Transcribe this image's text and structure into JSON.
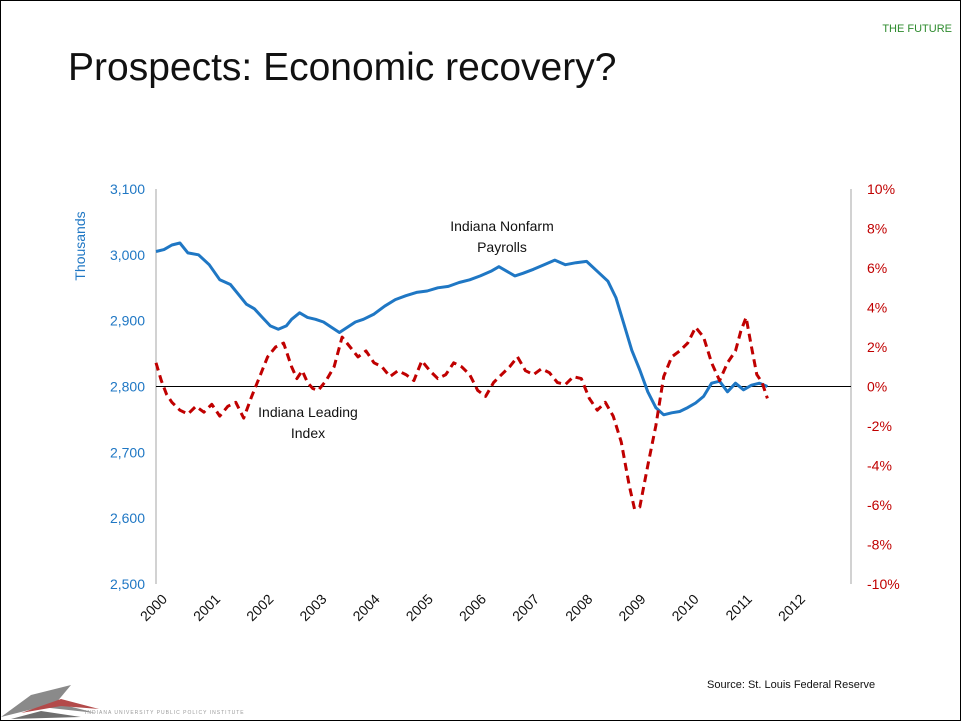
{
  "section_tag": "THE FUTURE",
  "title": "Prospects: Economic recovery?",
  "source": "Source:  St. Louis Federal Reserve",
  "logo_text": "INDIANA UNIVERSITY PUBLIC POLICY INSTITUTE",
  "colors": {
    "payrolls": "#1f77c4",
    "leading": "#c00000",
    "axis": "#808080"
  },
  "chart_data": {
    "type": "line",
    "xlabel": "",
    "left_axis": {
      "label": "Thousands",
      "ylim": [
        2500,
        3100
      ],
      "ticks": [
        "2,500",
        "2,600",
        "2,700",
        "2,800",
        "2,900",
        "3,000",
        "3,100"
      ]
    },
    "right_axis": {
      "ylim": [
        -10,
        10
      ],
      "ticks": [
        "-10%",
        "-8%",
        "-6%",
        "-4%",
        "-2%",
        "0%",
        "2%",
        "4%",
        "6%",
        "8%",
        "10%"
      ]
    },
    "x_ticks": [
      "2000",
      "2001",
      "2002",
      "2003",
      "2004",
      "2005",
      "2006",
      "2007",
      "2008",
      "2009",
      "2010",
      "2011",
      "2012"
    ],
    "xlim": [
      2000,
      2012
    ],
    "series": [
      {
        "name": "Indiana Nonfarm Payrolls",
        "axis": "left",
        "style": "solid",
        "x": [
          2000.0,
          2000.15,
          2000.3,
          2000.45,
          2000.6,
          2000.8,
          2001.0,
          2001.2,
          2001.4,
          2001.55,
          2001.7,
          2001.85,
          2002.0,
          2002.15,
          2002.3,
          2002.45,
          2002.55,
          2002.7,
          2002.85,
          2003.0,
          2003.15,
          2003.3,
          2003.45,
          2003.6,
          2003.75,
          2003.9,
          2004.1,
          2004.3,
          2004.5,
          2004.7,
          2004.9,
          2005.1,
          2005.3,
          2005.5,
          2005.7,
          2005.9,
          2006.1,
          2006.3,
          2006.45,
          2006.6,
          2006.75,
          2006.9,
          2007.1,
          2007.3,
          2007.5,
          2007.7,
          2007.9,
          2008.1,
          2008.3,
          2008.5,
          2008.65,
          2008.8,
          2008.95,
          2009.1,
          2009.25,
          2009.4,
          2009.55,
          2009.7,
          2009.85,
          2010.0,
          2010.15,
          2010.3,
          2010.45,
          2010.6,
          2010.75,
          2010.9,
          2011.05,
          2011.2,
          2011.35,
          2011.5
        ],
        "values": [
          3005,
          3008,
          3015,
          3018,
          3003,
          3000,
          2985,
          2962,
          2955,
          2940,
          2925,
          2918,
          2905,
          2892,
          2887,
          2892,
          2902,
          2912,
          2905,
          2902,
          2898,
          2890,
          2882,
          2890,
          2898,
          2902,
          2910,
          2922,
          2932,
          2938,
          2943,
          2945,
          2950,
          2952,
          2958,
          2962,
          2968,
          2975,
          2982,
          2975,
          2968,
          2972,
          2978,
          2985,
          2992,
          2985,
          2988,
          2990,
          2975,
          2960,
          2935,
          2895,
          2855,
          2825,
          2792,
          2768,
          2757,
          2760,
          2762,
          2768,
          2775,
          2785,
          2805,
          2808,
          2792,
          2805,
          2795,
          2802,
          2805,
          2800
        ]
      },
      {
        "name": "Indiana Leading Index",
        "axis": "right",
        "style": "dashed",
        "x": [
          2000.0,
          2000.1,
          2000.2,
          2000.3,
          2000.45,
          2000.6,
          2000.75,
          2000.9,
          2001.05,
          2001.2,
          2001.35,
          2001.5,
          2001.65,
          2001.8,
          2001.95,
          2002.1,
          2002.25,
          2002.4,
          2002.55,
          2002.65,
          2002.75,
          2002.85,
          2002.95,
          2003.05,
          2003.2,
          2003.35,
          2003.5,
          2003.65,
          2003.8,
          2003.95,
          2004.1,
          2004.25,
          2004.4,
          2004.55,
          2004.7,
          2004.85,
          2005.0,
          2005.15,
          2005.3,
          2005.45,
          2005.6,
          2005.75,
          2005.9,
          2006.05,
          2006.2,
          2006.35,
          2006.5,
          2006.65,
          2006.8,
          2006.95,
          2007.1,
          2007.25,
          2007.4,
          2007.55,
          2007.7,
          2007.85,
          2008.0,
          2008.15,
          2008.3,
          2008.45,
          2008.6,
          2008.75,
          2008.9,
          2009.0,
          2009.1,
          2009.25,
          2009.4,
          2009.55,
          2009.7,
          2009.85,
          2010.0,
          2010.15,
          2010.3,
          2010.45,
          2010.6,
          2010.75,
          2010.9,
          2011.0,
          2011.1,
          2011.2,
          2011.3,
          2011.4,
          2011.5
        ],
        "values": [
          1.2,
          0.3,
          -0.4,
          -0.8,
          -1.2,
          -1.4,
          -1.0,
          -1.3,
          -0.9,
          -1.5,
          -1.0,
          -0.8,
          -1.6,
          -0.5,
          0.5,
          1.5,
          2.0,
          2.2,
          1.0,
          0.4,
          0.8,
          0.2,
          -0.1,
          -0.2,
          0.3,
          1.0,
          2.5,
          2.0,
          1.5,
          1.8,
          1.2,
          1.0,
          0.5,
          0.8,
          0.6,
          0.3,
          1.3,
          0.8,
          0.4,
          0.6,
          1.2,
          1.0,
          0.6,
          -0.2,
          -0.5,
          0.2,
          0.6,
          1.0,
          1.5,
          0.8,
          0.6,
          0.9,
          0.7,
          0.2,
          0.1,
          0.5,
          0.4,
          -0.6,
          -1.2,
          -0.8,
          -1.5,
          -2.8,
          -5.0,
          -6.2,
          -6.1,
          -4.0,
          -2.0,
          0.5,
          1.5,
          1.8,
          2.2,
          3.0,
          2.5,
          1.2,
          0.3,
          1.2,
          1.8,
          2.8,
          3.5,
          2.0,
          0.6,
          0.2,
          -0.6
        ]
      }
    ],
    "annotations": [
      {
        "lines": [
          "Indiana Nonfarm",
          "Payrolls"
        ]
      },
      {
        "lines": [
          "Indiana Leading",
          "Index"
        ]
      }
    ]
  }
}
